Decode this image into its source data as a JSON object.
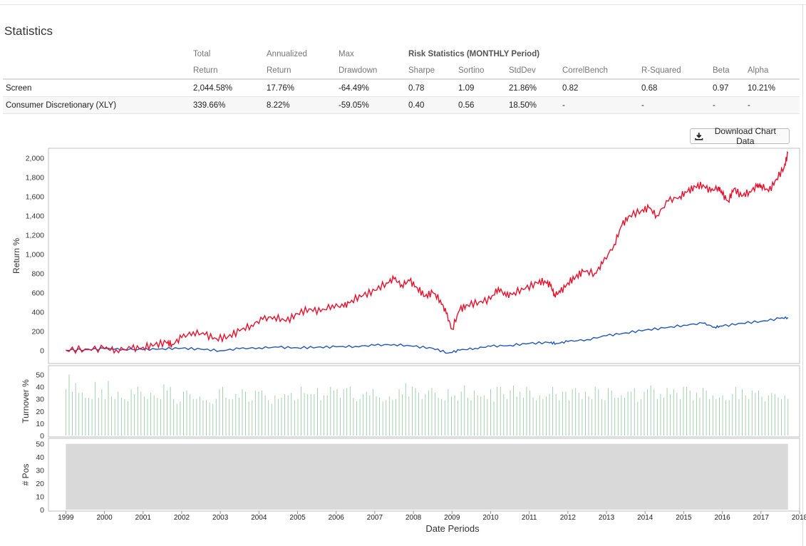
{
  "title": "Statistics",
  "table": {
    "header_row1": [
      "",
      "Total",
      "Annualized",
      "Max",
      "Risk Statistics (MONTHLY Period)"
    ],
    "header_row2": [
      "",
      "Return",
      "Return",
      "Drawdown",
      "Sharpe",
      "Sortino",
      "StdDev",
      "CorrelBench",
      "R-Squared",
      "Beta",
      "Alpha"
    ],
    "rows": [
      {
        "name": "Screen",
        "total": "2,044.58%",
        "annualized": "17.76%",
        "maxdd": "-64.49%",
        "sharpe": "0.78",
        "sortino": "1.09",
        "stddev": "21.86%",
        "correl": "0.82",
        "rsq": "0.68",
        "beta": "0.97",
        "alpha": "10.21%"
      },
      {
        "name": "Consumer Discretionary (XLY)",
        "total": "339.66%",
        "annualized": "8.22%",
        "maxdd": "-59.05%",
        "sharpe": "0.40",
        "sortino": "0.56",
        "stddev": "18.50%",
        "correl": "-",
        "rsq": "-",
        "beta": "-",
        "alpha": "-"
      }
    ]
  },
  "download_label": "Download Chart Data",
  "colors": {
    "screen": "#e8112d",
    "bench": "#2256b8",
    "turnover": "#9cc9a7",
    "positions": "#d9d9d9",
    "grid": "#dcdcdc"
  },
  "chart_data": [
    {
      "type": "line",
      "title": "",
      "xlabel": "Date Periods",
      "ylabel": "Return %",
      "xlim": [
        1998.55,
        2018.0
      ],
      "ylim": [
        -50,
        2100
      ],
      "y_ticks": [
        0,
        200,
        400,
        600,
        800,
        1000,
        1200,
        1400,
        1600,
        1800,
        2000
      ],
      "y_tick_labels": [
        "0",
        "200",
        "400",
        "600",
        "800",
        "1,000",
        "1,200",
        "1,400",
        "1,600",
        "1,800",
        "2,000"
      ],
      "x_ticks": [
        1999,
        2000,
        2001,
        2002,
        2003,
        2004,
        2005,
        2006,
        2007,
        2008,
        2009,
        2010,
        2011,
        2012,
        2013,
        2014,
        2015,
        2016,
        2017,
        2018
      ],
      "series": [
        {
          "name": "Screen",
          "x": [
            1999.0,
            1999.5,
            2000.0,
            2000.3,
            2000.7,
            2001.0,
            2001.3,
            2001.6,
            2001.75,
            2002.0,
            2002.3,
            2002.6,
            2002.9,
            2003.2,
            2003.5,
            2003.8,
            2004.1,
            2004.4,
            2004.7,
            2005.0,
            2005.3,
            2005.6,
            2005.9,
            2006.2,
            2006.4,
            2006.7,
            2007.0,
            2007.3,
            2007.5,
            2007.7,
            2007.9,
            2008.1,
            2008.3,
            2008.5,
            2008.7,
            2008.85,
            2009.0,
            2009.2,
            2009.4,
            2009.7,
            2010.0,
            2010.2,
            2010.4,
            2010.6,
            2010.9,
            2011.2,
            2011.4,
            2011.55,
            2011.65,
            2011.8,
            2012.0,
            2012.2,
            2012.4,
            2012.7,
            2012.9,
            2013.2,
            2013.4,
            2013.6,
            2013.9,
            2014.1,
            2014.3,
            2014.6,
            2014.9,
            2015.1,
            2015.3,
            2015.5,
            2015.7,
            2015.9,
            2016.0,
            2016.15,
            2016.3,
            2016.5,
            2016.7,
            2016.9,
            2017.0,
            2017.2,
            2017.4,
            2017.6,
            2017.7
          ],
          "y": [
            0,
            12,
            15,
            5,
            15,
            30,
            55,
            80,
            60,
            130,
            190,
            160,
            120,
            140,
            200,
            260,
            320,
            350,
            300,
            380,
            430,
            400,
            470,
            450,
            520,
            570,
            620,
            700,
            740,
            680,
            720,
            650,
            560,
            600,
            520,
            380,
            220,
            420,
            470,
            500,
            530,
            650,
            560,
            600,
            640,
            700,
            720,
            670,
            580,
            600,
            700,
            760,
            820,
            800,
            900,
            1100,
            1300,
            1400,
            1450,
            1480,
            1400,
            1550,
            1600,
            1650,
            1700,
            1720,
            1650,
            1700,
            1620,
            1550,
            1680,
            1600,
            1650,
            1700,
            1720,
            1650,
            1780,
            1900,
            2050
          ]
        },
        {
          "name": "Consumer Discretionary (XLY)",
          "x": [
            1999.0,
            1999.5,
            2000.0,
            2000.5,
            2001.0,
            2001.5,
            2002.0,
            2002.5,
            2003.0,
            2003.5,
            2004.0,
            2004.5,
            2005.0,
            2005.5,
            2006.0,
            2006.5,
            2007.0,
            2007.5,
            2008.0,
            2008.5,
            2008.9,
            2009.2,
            2009.6,
            2010.0,
            2010.5,
            2011.0,
            2011.5,
            2011.7,
            2012.0,
            2012.5,
            2013.0,
            2013.5,
            2014.0,
            2014.5,
            2015.0,
            2015.5,
            2015.8,
            2016.0,
            2016.5,
            2017.0,
            2017.5,
            2017.7
          ],
          "y": [
            0,
            5,
            15,
            10,
            5,
            15,
            20,
            10,
            -5,
            15,
            25,
            30,
            25,
            30,
            35,
            40,
            50,
            60,
            40,
            20,
            -30,
            0,
            20,
            40,
            50,
            70,
            80,
            70,
            90,
            110,
            150,
            180,
            210,
            230,
            260,
            280,
            240,
            250,
            280,
            300,
            330,
            340
          ]
        }
      ]
    },
    {
      "type": "bar",
      "title": "",
      "ylabel": "Turnover %",
      "ylim": [
        0,
        55
      ],
      "y_ticks": [
        0,
        10,
        20,
        30,
        40,
        50
      ],
      "x_start": 1999.0,
      "x_end": 2017.7,
      "values": [
        38,
        50,
        36,
        43,
        35,
        35,
        31,
        31,
        30,
        44,
        31,
        38,
        30,
        45,
        32,
        30,
        36,
        31,
        30,
        28,
        38,
        34,
        40,
        36,
        32,
        30,
        35,
        33,
        31,
        30,
        42,
        37,
        40,
        30,
        26,
        28,
        36,
        37,
        34,
        30,
        30,
        32,
        29,
        29,
        27,
        26,
        30,
        38,
        40,
        31,
        30,
        30,
        34,
        31,
        38,
        36,
        28,
        29,
        37,
        36,
        37,
        33,
        29,
        26,
        33,
        30,
        31,
        34,
        33,
        35,
        29,
        30,
        40,
        35,
        34,
        34,
        34,
        39,
        29,
        33,
        33,
        40,
        37,
        38,
        31,
        38,
        39,
        40,
        31,
        28,
        30,
        34,
        36,
        33,
        38,
        32,
        31,
        28,
        29,
        32,
        29,
        30,
        38,
        34,
        43,
        32,
        40,
        39,
        35,
        30,
        34,
        37,
        39,
        35,
        31,
        30,
        29,
        38,
        32,
        33,
        29,
        36,
        41,
        31,
        29,
        37,
        33,
        32,
        33,
        30,
        38,
        28,
        40,
        40,
        34,
        30,
        37,
        41,
        32,
        36,
        31,
        40,
        37,
        31,
        29,
        33,
        30,
        32,
        34,
        40,
        34,
        29,
        36,
        36,
        29,
        38,
        39,
        35,
        30,
        36,
        32,
        30,
        40,
        38,
        30,
        29,
        39,
        37,
        31,
        31,
        33,
        31,
        36,
        36,
        39,
        28,
        30,
        36,
        38,
        41,
        38,
        30,
        34,
        31,
        39,
        34,
        38,
        35,
        30,
        40,
        40,
        37,
        29,
        35,
        31,
        39,
        37,
        30,
        33,
        30,
        31,
        33,
        29,
        29,
        34,
        40,
        30,
        38,
        33,
        30,
        37,
        35,
        37,
        32,
        28,
        33,
        35,
        34,
        31,
        30,
        33,
        30
      ]
    },
    {
      "type": "area",
      "title": "",
      "ylabel": "# Pos",
      "ylim": [
        0,
        52
      ],
      "y_ticks": [
        0,
        10,
        20,
        30,
        40,
        50
      ],
      "x": [
        1999.0,
        2017.7
      ],
      "values": [
        50,
        50
      ]
    }
  ]
}
